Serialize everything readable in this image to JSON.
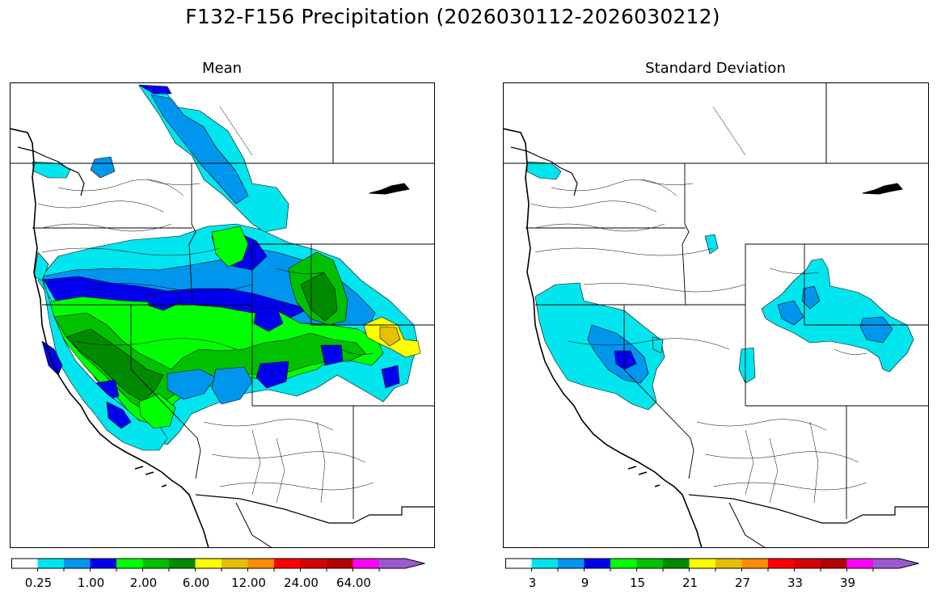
{
  "title": "F132-F156 Precipitation (2026030112-2026030212)",
  "panels": [
    {
      "title": "Mean"
    },
    {
      "title": "Standard Deviation"
    }
  ],
  "colorbar_colors": [
    "#ffffff",
    "#00e5ee",
    "#0096ee",
    "#0000ee",
    "#00ff00",
    "#00c000",
    "#008a00",
    "#ffff00",
    "#e5bf00",
    "#ff8c00",
    "#ff0000",
    "#d60000",
    "#b30000",
    "#ff00ff",
    "#9b59d0"
  ],
  "mean_ticks": [
    "0.25",
    "1.00",
    "2.00",
    "6.00",
    "12.00",
    "24.00",
    "64.00"
  ],
  "std_ticks": [
    "3",
    "9",
    "15",
    "21",
    "27",
    "33",
    "39"
  ]
}
